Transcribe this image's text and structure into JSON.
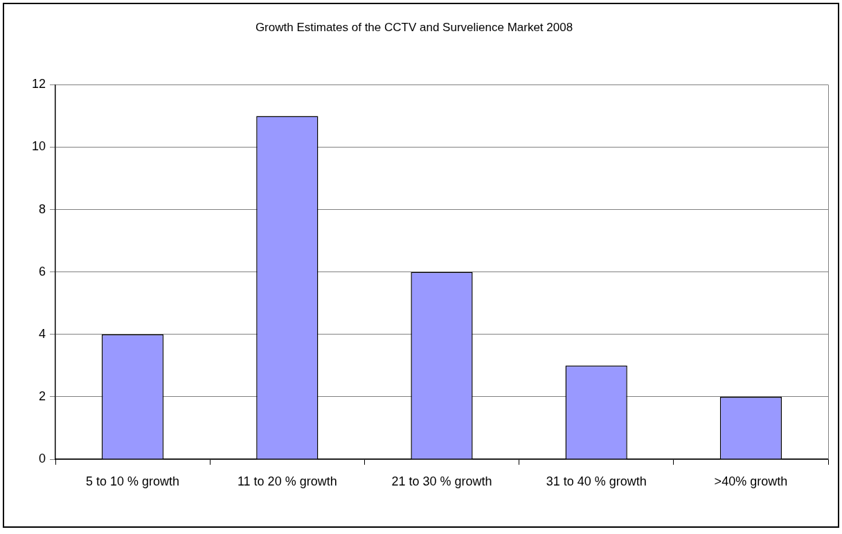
{
  "chart_data": {
    "type": "bar",
    "title": "Growth Estimates of the CCTV and Survelience Market 2008",
    "categories": [
      "5 to 10 % growth",
      "11 to 20 % growth",
      "21 to 30 % growth",
      "31 to 40 % growth",
      ">40% growth"
    ],
    "values": [
      4,
      11,
      6,
      3,
      2
    ],
    "color": "#9999ff",
    "ylim": [
      0,
      12
    ],
    "yticks": [
      0,
      2,
      4,
      6,
      8,
      10,
      12
    ],
    "grid": "y"
  }
}
